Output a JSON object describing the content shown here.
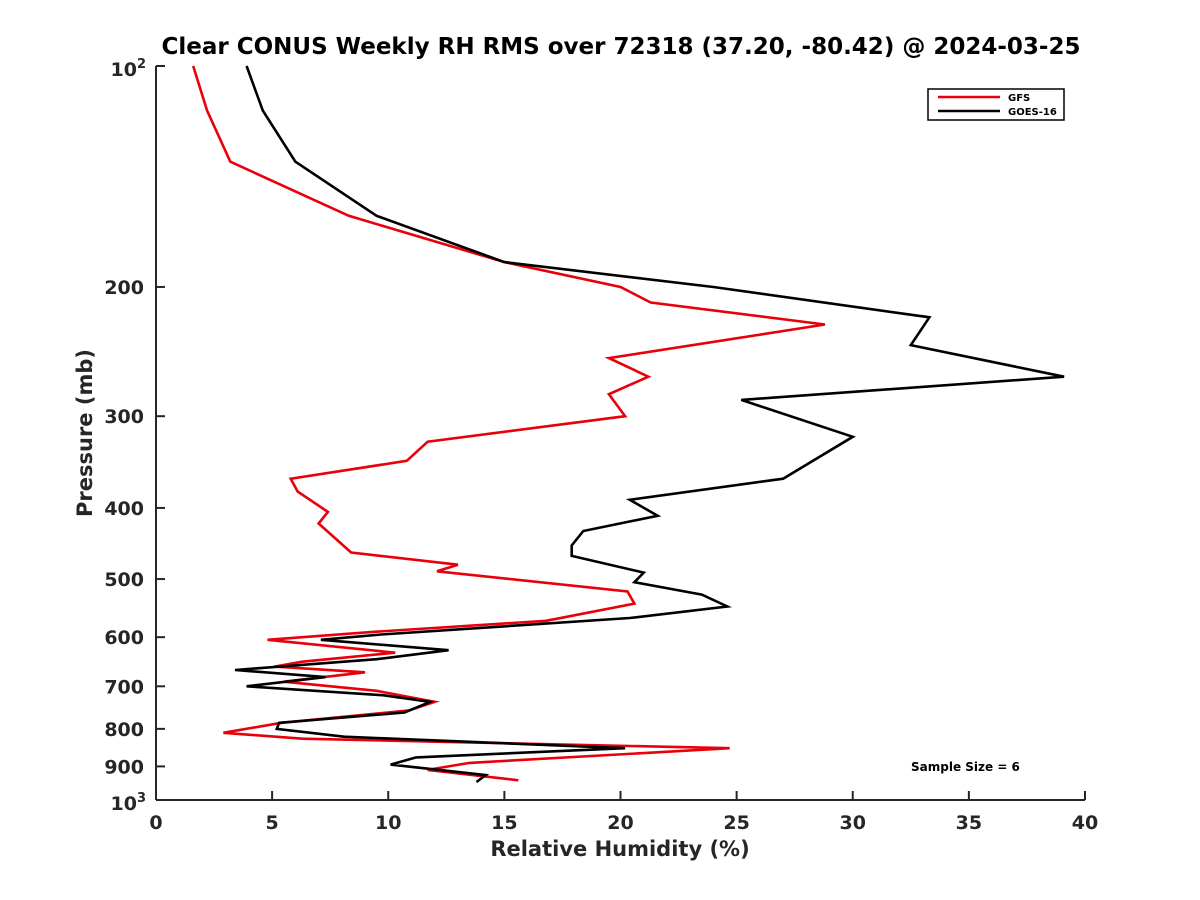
{
  "chart_data": {
    "type": "line",
    "title": "Clear CONUS Weekly RH RMS over 72318 (37.20, -80.42) @ 2024-03-25",
    "xlabel": "Relative Humidity (%)",
    "ylabel": "Pressure (mb)",
    "xlim": [
      0,
      40
    ],
    "ylim": [
      100,
      1000
    ],
    "y_scale": "log",
    "y_reversed": true,
    "grid": false,
    "legend_position": "top-right",
    "x_ticks": [
      "0",
      "5",
      "10",
      "15",
      "20",
      "25",
      "30",
      "35",
      "40"
    ],
    "y_ticks": [
      {
        "value": 100,
        "base": "10",
        "exp": "2"
      },
      {
        "value": 200,
        "label": "200"
      },
      {
        "value": 300,
        "label": "300"
      },
      {
        "value": 400,
        "label": "400"
      },
      {
        "value": 500,
        "label": "500"
      },
      {
        "value": 600,
        "label": "600"
      },
      {
        "value": 700,
        "label": "700"
      },
      {
        "value": 800,
        "label": "800"
      },
      {
        "value": 900,
        "label": "900"
      },
      {
        "value": 1000,
        "base": "10",
        "exp": "3"
      }
    ],
    "annotation": "Sample Size = 6",
    "series": [
      {
        "name": "GFS",
        "color": "#e8000b",
        "points": [
          [
            1.6,
            100
          ],
          [
            2.2,
            115
          ],
          [
            3.2,
            135
          ],
          [
            8.3,
            160
          ],
          [
            15.0,
            185
          ],
          [
            20.0,
            200
          ],
          [
            21.3,
            210
          ],
          [
            28.8,
            225
          ],
          [
            19.5,
            250
          ],
          [
            21.2,
            265
          ],
          [
            19.5,
            280
          ],
          [
            20.2,
            300
          ],
          [
            11.7,
            325
          ],
          [
            10.8,
            345
          ],
          [
            5.8,
            365
          ],
          [
            6.1,
            380
          ],
          [
            7.4,
            405
          ],
          [
            7.0,
            420
          ],
          [
            8.4,
            460
          ],
          [
            13.0,
            478
          ],
          [
            12.1,
            488
          ],
          [
            20.3,
            520
          ],
          [
            20.6,
            540
          ],
          [
            16.8,
            570
          ],
          [
            9.4,
            590
          ],
          [
            4.8,
            605
          ],
          [
            10.3,
            630
          ],
          [
            6.3,
            648
          ],
          [
            5.1,
            658
          ],
          [
            9.0,
            670
          ],
          [
            5.5,
            690
          ],
          [
            9.5,
            710
          ],
          [
            12.0,
            735
          ],
          [
            10.9,
            755
          ],
          [
            5.4,
            785
          ],
          [
            2.9,
            810
          ],
          [
            6.3,
            825
          ],
          [
            24.7,
            850
          ],
          [
            13.5,
            890
          ],
          [
            11.7,
            910
          ],
          [
            15.6,
            940
          ]
        ]
      },
      {
        "name": "GOES-16",
        "color": "#000000",
        "points": [
          [
            3.9,
            100
          ],
          [
            4.6,
            115
          ],
          [
            6.0,
            135
          ],
          [
            9.5,
            160
          ],
          [
            15.0,
            185
          ],
          [
            24.0,
            200
          ],
          [
            33.3,
            220
          ],
          [
            32.5,
            240
          ],
          [
            39.1,
            265
          ],
          [
            25.2,
            285
          ],
          [
            30.0,
            320
          ],
          [
            27.0,
            365
          ],
          [
            20.4,
            390
          ],
          [
            21.6,
            410
          ],
          [
            18.4,
            430
          ],
          [
            17.9,
            450
          ],
          [
            17.9,
            465
          ],
          [
            21.0,
            490
          ],
          [
            20.6,
            505
          ],
          [
            23.5,
            525
          ],
          [
            24.6,
            545
          ],
          [
            20.4,
            565
          ],
          [
            9.7,
            595
          ],
          [
            7.1,
            605
          ],
          [
            12.6,
            625
          ],
          [
            9.5,
            643
          ],
          [
            3.4,
            665
          ],
          [
            7.3,
            680
          ],
          [
            3.9,
            700
          ],
          [
            9.8,
            720
          ],
          [
            11.8,
            735
          ],
          [
            10.7,
            760
          ],
          [
            5.3,
            785
          ],
          [
            5.2,
            800
          ],
          [
            8.1,
            820
          ],
          [
            20.2,
            850
          ],
          [
            11.2,
            875
          ],
          [
            10.1,
            895
          ],
          [
            14.2,
            925
          ],
          [
            13.8,
            945
          ]
        ]
      }
    ]
  }
}
